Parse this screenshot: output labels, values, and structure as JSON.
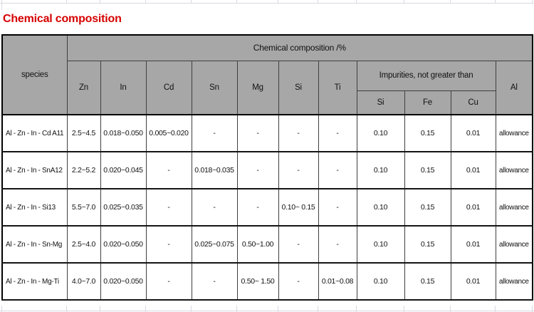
{
  "title": {
    "text": "Chemical composition"
  },
  "colors": {
    "title_red": "#d60000",
    "header_bg": "#a7a7a7",
    "table_border": "#000000",
    "gridline": "#d9d9e2"
  },
  "table": {
    "header": {
      "species": "species",
      "composition_group": "Chemical composition /%",
      "elements": [
        "Zn",
        "In",
        "Cd",
        "Sn",
        "Mg",
        "Si",
        "Ti"
      ],
      "impurities_group": "Impurities, not greater than",
      "impurity_columns": [
        "Si",
        "Fe",
        "Cu"
      ],
      "al": "Al"
    },
    "rows": [
      [
        "Al - Zn - In - Cd A11",
        "2.5~4.5",
        "0.018~0.050",
        "0.005~0.020",
        "-",
        "-",
        "-",
        "-",
        "0.10",
        "0.15",
        "0.01",
        "allowance"
      ],
      [
        "Al - Zn - In - SnA12",
        "2.2~5.2",
        "0.020~0.045",
        "-",
        "0.018~0.035",
        "-",
        "-",
        "-",
        "0.10",
        "0.15",
        "0.01",
        "allowance"
      ],
      [
        "Al - Zn - In - Si13",
        "5.5~7.0",
        "0.025~0.035",
        "-",
        "-",
        "-",
        "0.10~ 0.15",
        "-",
        "0.10",
        "0.15",
        "0.01",
        "allowance"
      ],
      [
        "Al - Zn - In - Sn-Mg",
        "2.5~4.0",
        "0.020~0.050",
        "-",
        "0.025~0.075",
        "0.50~1.00",
        "-",
        "-",
        "0.10",
        "0.15",
        "0.01",
        "allowance"
      ],
      [
        "Al - Zn - In - Mg-Ti",
        "4.0~7.0",
        "0.020~0.050",
        "-",
        "-",
        "0.50~ 1.50",
        "-",
        "0.01~0.08",
        "0.10",
        "0.15",
        "0.01",
        "allowance"
      ]
    ]
  }
}
